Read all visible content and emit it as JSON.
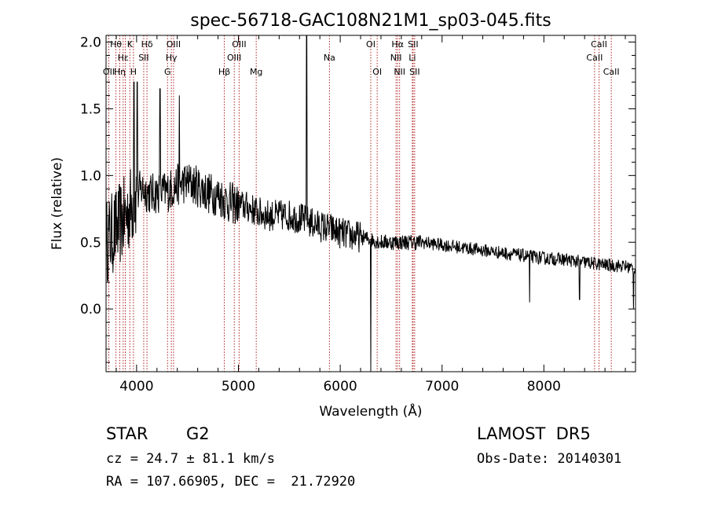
{
  "chart_data": {
    "type": "line",
    "title": "spec-56718-GAC108N21M1_sp03-045.fits",
    "xlabel": "Wavelength (Å)",
    "ylabel": "Flux (relative)",
    "xlim": [
      3700,
      8900
    ],
    "ylim": [
      -0.47,
      2.05
    ],
    "x_ticks": [
      4000,
      5000,
      6000,
      7000,
      8000
    ],
    "y_ticks": [
      0.0,
      0.5,
      1.0,
      1.5,
      2.0
    ],
    "x_tick_labels": [
      "4000",
      "5000",
      "6000",
      "7000",
      "8000"
    ],
    "y_tick_labels": [
      "0.0",
      "0.5",
      "1.0",
      "1.5",
      "2.0"
    ],
    "grid": false,
    "line_color": "#000000",
    "marker_color": "#b22222",
    "spectrum_anchors": {
      "x": [
        3700,
        3750,
        3800,
        3850,
        3900,
        3950,
        4000,
        4050,
        4100,
        4150,
        4200,
        4300,
        4400,
        4500,
        4600,
        4700,
        4800,
        4900,
        5000,
        5100,
        5200,
        5300,
        5400,
        5500,
        5600,
        5700,
        5800,
        5900,
        6000,
        6100,
        6200,
        6300,
        6400,
        6500,
        6600,
        6700,
        6800,
        6900,
        7000,
        7200,
        7400,
        7600,
        7800,
        8000,
        8200,
        8400,
        8600,
        8800,
        8900
      ],
      "y": [
        0.5,
        0.55,
        0.6,
        0.65,
        0.7,
        0.78,
        0.85,
        0.9,
        0.88,
        0.86,
        0.87,
        0.88,
        0.93,
        0.95,
        0.92,
        0.87,
        0.85,
        0.8,
        0.78,
        0.76,
        0.72,
        0.7,
        0.7,
        0.7,
        0.68,
        0.65,
        0.62,
        0.6,
        0.57,
        0.55,
        0.54,
        0.52,
        0.5,
        0.5,
        0.5,
        0.5,
        0.5,
        0.49,
        0.48,
        0.46,
        0.44,
        0.42,
        0.4,
        0.38,
        0.37,
        0.35,
        0.33,
        0.32,
        0.3
      ]
    },
    "spikes": [
      {
        "x": 3975,
        "y": 1.7
      },
      {
        "x": 4005,
        "y": 1.7
      },
      {
        "x": 4230,
        "y": 1.65
      },
      {
        "x": 4420,
        "y": 1.6
      },
      {
        "x": 5670,
        "y": 2.05
      },
      {
        "x": 6300,
        "y": -0.47
      },
      {
        "x": 7860,
        "y": 0.05
      },
      {
        "x": 8350,
        "y": 0.07
      },
      {
        "x": 8880,
        "y": 0.0
      }
    ],
    "spectral_lines": [
      {
        "x": 3727,
        "label": "OII",
        "row": 3
      },
      {
        "x": 3797,
        "label": "Hθ",
        "row": 1
      },
      {
        "x": 3835,
        "label": "Hη",
        "row": 3
      },
      {
        "x": 3868,
        "label": "Hε",
        "row": 2
      },
      {
        "x": 3889,
        "label": "",
        "row": 0
      },
      {
        "x": 3934,
        "label": "K",
        "row": 1
      },
      {
        "x": 3969,
        "label": "H",
        "row": 3
      },
      {
        "x": 4070,
        "label": "SII",
        "row": 2
      },
      {
        "x": 4102,
        "label": "Hδ",
        "row": 1
      },
      {
        "x": 4304,
        "label": "G",
        "row": 3
      },
      {
        "x": 4341,
        "label": "Hγ",
        "row": 2
      },
      {
        "x": 4363,
        "label": "OIII",
        "row": 1
      },
      {
        "x": 4861,
        "label": "Hβ",
        "row": 3
      },
      {
        "x": 4959,
        "label": "OIII",
        "row": 2
      },
      {
        "x": 5007,
        "label": "OIII",
        "row": 1
      },
      {
        "x": 5175,
        "label": "Mg",
        "row": 3
      },
      {
        "x": 5894,
        "label": "Na",
        "row": 2
      },
      {
        "x": 6300,
        "label": "OI",
        "row": 1
      },
      {
        "x": 6363,
        "label": "OI",
        "row": 3
      },
      {
        "x": 6548,
        "label": "NII",
        "row": 2
      },
      {
        "x": 6563,
        "label": "Hα",
        "row": 1
      },
      {
        "x": 6583,
        "label": "NII",
        "row": 3
      },
      {
        "x": 6708,
        "label": "Li",
        "row": 2
      },
      {
        "x": 6716,
        "label": "SII",
        "row": 1
      },
      {
        "x": 6731,
        "label": "SII",
        "row": 3
      },
      {
        "x": 8498,
        "label": "CaII",
        "row": 2
      },
      {
        "x": 8542,
        "label": "CaII",
        "row": 1
      },
      {
        "x": 8662,
        "label": "CaII",
        "row": 3
      }
    ]
  },
  "info": {
    "class_label": "STAR",
    "subclass_label": "G2",
    "survey": "LAMOST  DR5",
    "velocity": "cz = 24.7 ± 81.1 km/s",
    "obs_date": "Obs-Date: 20140301",
    "coords": "RA = 107.66905, DEC =  21.72920"
  }
}
